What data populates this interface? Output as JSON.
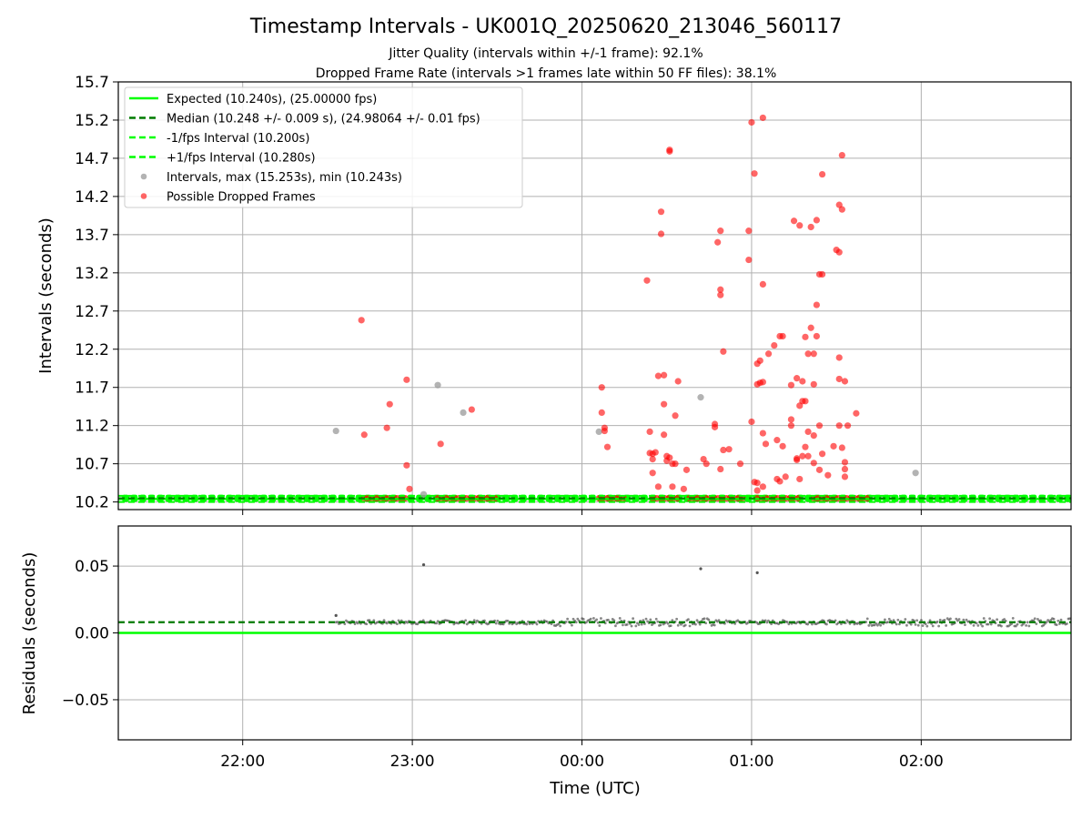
{
  "title": "Timestamp Intervals - UK001Q_20250620_213046_560117",
  "subtitle_1": "Jitter Quality (intervals within +/-1 frame): 92.1%",
  "subtitle_2": "Dropped Frame Rate (intervals >1 frames late within 50 FF files): 38.1%",
  "colors": {
    "expected": "#00ff00",
    "median": "#007a00",
    "interval": "#999999",
    "dropped": "#ff0000",
    "residual": "#555555",
    "grid": "#b0b0b0"
  },
  "legend": {
    "placement": "top-left",
    "expected": "Expected (10.240s), (25.00000 fps)",
    "median": "Median (10.248 +/- 0.009 s), (24.98064 +/- 0.01 fps)",
    "minus": "-1/fps Interval (10.200s)",
    "plus": "+1/fps Interval (10.280s)",
    "intervals": "Intervals, max (15.253s), min (10.243s)",
    "dropped": "Possible Dropped Frames"
  },
  "chart_data": [
    {
      "type": "scatter",
      "ylabel": "Intervals (seconds)",
      "ylim": [
        10.1,
        15.7
      ],
      "yticks": [
        10.2,
        10.7,
        11.2,
        11.7,
        12.2,
        12.7,
        13.2,
        13.7,
        14.2,
        14.7,
        15.2,
        15.7
      ],
      "ytick_labels": [
        "10.2",
        "10.7",
        "11.2",
        "11.7",
        "12.2",
        "12.7",
        "13.2",
        "13.7",
        "14.2",
        "14.7",
        "15.2",
        "15.7"
      ],
      "xlim": [
        "2025-06-20T21:16",
        "2025-06-21T02:53"
      ],
      "grid": true,
      "reference_lines": {
        "expected": 10.24,
        "median": 10.248,
        "minus_one_frame": 10.2,
        "plus_one_frame": 10.28
      },
      "series": [
        {
          "name": "Intervals, max (15.253s), min (10.243s)",
          "points": [
            [
              "2025-06-20T22:33",
              11.13
            ],
            [
              "2025-06-20T23:04",
              10.3
            ],
            [
              "2025-06-20T23:09",
              11.73
            ],
            [
              "2025-06-20T23:18",
              11.37
            ],
            [
              "2025-06-21T00:06",
              11.12
            ],
            [
              "2025-06-21T00:42",
              11.57
            ],
            [
              "2025-06-21T01:58",
              10.58
            ]
          ]
        },
        {
          "name": "Possible Dropped Frames",
          "points": [
            [
              "2025-06-20T22:42",
              12.58
            ],
            [
              "2025-06-20T22:43",
              11.08
            ],
            [
              "2025-06-20T22:51",
              11.17
            ],
            [
              "2025-06-20T22:52",
              11.48
            ],
            [
              "2025-06-20T22:58",
              11.8
            ],
            [
              "2025-06-20T22:58",
              10.68
            ],
            [
              "2025-06-20T22:59",
              10.37
            ],
            [
              "2025-06-20T23:10",
              10.96
            ],
            [
              "2025-06-20T23:21",
              11.41
            ],
            [
              "2025-06-21T00:07",
              11.7
            ],
            [
              "2025-06-21T00:07",
              11.37
            ],
            [
              "2025-06-21T00:08",
              11.17
            ],
            [
              "2025-06-21T00:08",
              11.13
            ],
            [
              "2025-06-21T00:09",
              10.92
            ],
            [
              "2025-06-21T00:23",
              13.1
            ],
            [
              "2025-06-21T00:24",
              11.12
            ],
            [
              "2025-06-21T00:24",
              10.84
            ],
            [
              "2025-06-21T00:25",
              10.83
            ],
            [
              "2025-06-21T00:25",
              10.76
            ],
            [
              "2025-06-21T00:25",
              10.58
            ],
            [
              "2025-06-21T00:26",
              10.85
            ],
            [
              "2025-06-21T00:27",
              10.4
            ],
            [
              "2025-06-21T00:27",
              11.85
            ],
            [
              "2025-06-21T00:28",
              13.71
            ],
            [
              "2025-06-21T00:28",
              14.0
            ],
            [
              "2025-06-21T00:29",
              11.48
            ],
            [
              "2025-06-21T00:29",
              11.08
            ],
            [
              "2025-06-21T00:29",
              11.86
            ],
            [
              "2025-06-21T00:30",
              10.8
            ],
            [
              "2025-06-21T00:30",
              10.74
            ],
            [
              "2025-06-21T00:31",
              14.81
            ],
            [
              "2025-06-21T00:31",
              14.79
            ],
            [
              "2025-06-21T00:31",
              10.78
            ],
            [
              "2025-06-21T00:32",
              10.7
            ],
            [
              "2025-06-21T00:32",
              10.4
            ],
            [
              "2025-06-21T00:33",
              11.33
            ],
            [
              "2025-06-21T00:33",
              10.7
            ],
            [
              "2025-06-21T00:34",
              11.78
            ],
            [
              "2025-06-21T00:36",
              10.37
            ],
            [
              "2025-06-21T00:37",
              10.62
            ],
            [
              "2025-06-21T00:43",
              10.76
            ],
            [
              "2025-06-21T00:44",
              10.7
            ],
            [
              "2025-06-21T00:47",
              11.22
            ],
            [
              "2025-06-21T00:47",
              11.18
            ],
            [
              "2025-06-21T00:48",
              13.6
            ],
            [
              "2025-06-21T00:49",
              12.91
            ],
            [
              "2025-06-21T00:49",
              12.98
            ],
            [
              "2025-06-21T00:49",
              13.75
            ],
            [
              "2025-06-21T00:49",
              10.63
            ],
            [
              "2025-06-21T00:50",
              12.17
            ],
            [
              "2025-06-21T00:50",
              10.88
            ],
            [
              "2025-06-21T00:52",
              10.89
            ],
            [
              "2025-06-21T00:56",
              10.7
            ],
            [
              "2025-06-21T00:59",
              13.75
            ],
            [
              "2025-06-21T00:59",
              13.37
            ],
            [
              "2025-06-21T01:00",
              11.25
            ],
            [
              "2025-06-21T01:00",
              15.17
            ],
            [
              "2025-06-21T01:01",
              14.5
            ],
            [
              "2025-06-21T01:01",
              10.46
            ],
            [
              "2025-06-21T01:02",
              12.01
            ],
            [
              "2025-06-21T01:02",
              11.74
            ],
            [
              "2025-06-21T01:02",
              10.45
            ],
            [
              "2025-06-21T01:02",
              10.35
            ],
            [
              "2025-06-21T01:03",
              11.76
            ],
            [
              "2025-06-21T01:03",
              12.05
            ],
            [
              "2025-06-21T01:04",
              15.23
            ],
            [
              "2025-06-21T01:04",
              13.05
            ],
            [
              "2025-06-21T01:04",
              11.77
            ],
            [
              "2025-06-21T01:04",
              11.1
            ],
            [
              "2025-06-21T01:04",
              10.4
            ],
            [
              "2025-06-21T01:05",
              10.96
            ],
            [
              "2025-06-21T01:06",
              12.14
            ],
            [
              "2025-06-21T01:08",
              12.25
            ],
            [
              "2025-06-21T01:09",
              11.01
            ],
            [
              "2025-06-21T01:09",
              10.5
            ],
            [
              "2025-06-21T01:10",
              10.47
            ],
            [
              "2025-06-21T01:10",
              12.37
            ],
            [
              "2025-06-21T01:11",
              12.37
            ],
            [
              "2025-06-21T01:11",
              10.93
            ],
            [
              "2025-06-21T01:12",
              10.53
            ],
            [
              "2025-06-21T01:14",
              11.28
            ],
            [
              "2025-06-21T01:14",
              11.2
            ],
            [
              "2025-06-21T01:14",
              11.73
            ],
            [
              "2025-06-21T01:15",
              13.88
            ],
            [
              "2025-06-21T01:16",
              11.82
            ],
            [
              "2025-06-21T01:16",
              10.77
            ],
            [
              "2025-06-21T01:16",
              10.75
            ],
            [
              "2025-06-21T01:17",
              13.82
            ],
            [
              "2025-06-21T01:17",
              11.46
            ],
            [
              "2025-06-21T01:17",
              10.5
            ],
            [
              "2025-06-21T01:18",
              11.78
            ],
            [
              "2025-06-21T01:18",
              11.52
            ],
            [
              "2025-06-21T01:18",
              10.8
            ],
            [
              "2025-06-21T01:19",
              12.36
            ],
            [
              "2025-06-21T01:19",
              11.52
            ],
            [
              "2025-06-21T01:19",
              10.92
            ],
            [
              "2025-06-21T01:20",
              12.14
            ],
            [
              "2025-06-21T01:20",
              11.12
            ],
            [
              "2025-06-21T01:20",
              10.8
            ],
            [
              "2025-06-21T01:21",
              13.8
            ],
            [
              "2025-06-21T01:21",
              12.48
            ],
            [
              "2025-06-21T01:22",
              12.14
            ],
            [
              "2025-06-21T01:22",
              11.74
            ],
            [
              "2025-06-21T01:22",
              11.07
            ],
            [
              "2025-06-21T01:22",
              10.71
            ],
            [
              "2025-06-21T01:23",
              13.89
            ],
            [
              "2025-06-21T01:23",
              12.78
            ],
            [
              "2025-06-21T01:23",
              12.37
            ],
            [
              "2025-06-21T01:24",
              13.18
            ],
            [
              "2025-06-21T01:24",
              11.2
            ],
            [
              "2025-06-21T01:24",
              10.62
            ],
            [
              "2025-06-21T01:25",
              14.49
            ],
            [
              "2025-06-21T01:25",
              13.18
            ],
            [
              "2025-06-21T01:25",
              10.83
            ],
            [
              "2025-06-21T01:27",
              10.55
            ],
            [
              "2025-06-21T01:29",
              10.93
            ],
            [
              "2025-06-21T01:30",
              13.5
            ],
            [
              "2025-06-21T01:31",
              13.47
            ],
            [
              "2025-06-21T01:31",
              12.09
            ],
            [
              "2025-06-21T01:31",
              11.81
            ],
            [
              "2025-06-21T01:31",
              11.2
            ],
            [
              "2025-06-21T01:31",
              14.09
            ],
            [
              "2025-06-21T01:32",
              14.74
            ],
            [
              "2025-06-21T01:32",
              14.03
            ],
            [
              "2025-06-21T01:32",
              10.91
            ],
            [
              "2025-06-21T01:33",
              10.63
            ],
            [
              "2025-06-21T01:33",
              10.53
            ],
            [
              "2025-06-21T01:33",
              10.72
            ],
            [
              "2025-06-21T01:33",
              11.78
            ],
            [
              "2025-06-21T01:34",
              11.2
            ],
            [
              "2025-06-21T01:37",
              11.36
            ]
          ]
        }
      ],
      "dropped_band_ranges": [
        [
          "2025-06-20T22:43",
          "2025-06-20T22:58"
        ],
        [
          "2025-06-20T23:09",
          "2025-06-20T23:30"
        ],
        [
          "2025-06-21T00:06",
          "2025-06-21T00:16"
        ],
        [
          "2025-06-21T00:25",
          "2025-06-21T00:35"
        ],
        [
          "2025-06-21T00:38",
          "2025-06-21T00:58"
        ],
        [
          "2025-06-21T01:02",
          "2025-06-21T01:17"
        ],
        [
          "2025-06-21T01:22",
          "2025-06-21T01:42"
        ]
      ]
    },
    {
      "type": "scatter",
      "ylabel": "Residuals (seconds)",
      "xlabel": "Time (UTC)",
      "ylim": [
        -0.08,
        0.08
      ],
      "yticks": [
        -0.05,
        0.0,
        0.05
      ],
      "ytick_labels": [
        "−0.05",
        "0.00",
        "0.05"
      ],
      "xlim": [
        "2025-06-20T21:16",
        "2025-06-21T02:53"
      ],
      "xticks": [
        "2025-06-20T22:00",
        "2025-06-20T23:00",
        "2025-06-21T00:00",
        "2025-06-21T01:00",
        "2025-06-21T02:00"
      ],
      "xtick_labels": [
        "22:00",
        "23:00",
        "00:00",
        "01:00",
        "02:00"
      ],
      "grid": true,
      "reference_lines": {
        "zero": 0.0,
        "median": 0.008
      },
      "outliers": [
        [
          "2025-06-20T22:33",
          0.013
        ],
        [
          "2025-06-20T23:04",
          0.051
        ],
        [
          "2025-06-21T00:42",
          0.048
        ],
        [
          "2025-06-21T01:02",
          0.045
        ]
      ],
      "residual_band": {
        "start": "2025-06-20T22:33",
        "end": "2025-06-21T02:53",
        "center": 0.008,
        "spread": 0.003
      }
    }
  ]
}
